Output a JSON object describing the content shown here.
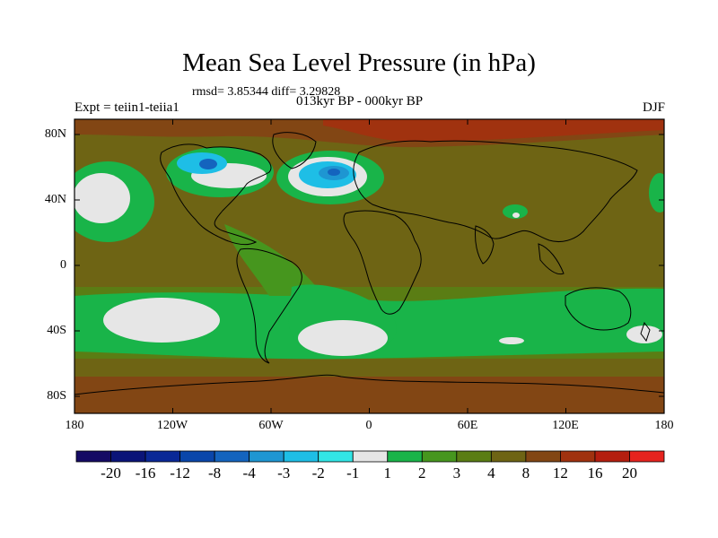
{
  "title": "Mean Sea Level Pressure (in hPa)",
  "stats": "rmsd= 3.85344  diff= 3.29828",
  "period": "013kyr BP - 000kyr BP",
  "expt": "Expt = teiin1-teiia1",
  "season": "DJF",
  "axes": {
    "y_ticks": [
      "80N",
      "40N",
      "0",
      "40S",
      "80S"
    ],
    "x_ticks": [
      "180",
      "120W",
      "60W",
      "0",
      "60E",
      "120E",
      "180"
    ]
  },
  "colorbar": {
    "labels": [
      "-20",
      "-16",
      "-12",
      "-8",
      "-4",
      "-3",
      "-2",
      "-1",
      "1",
      "2",
      "3",
      "4",
      "8",
      "12",
      "16",
      "20"
    ],
    "colors": [
      "#150a64",
      "#0a1478",
      "#0a2896",
      "#0a46aa",
      "#1464be",
      "#1e96d2",
      "#1ebee6",
      "#32e6e6",
      "#e6e6e6",
      "#19b449",
      "#46961e",
      "#5a7d14",
      "#6e6414",
      "#824614",
      "#a0320f",
      "#b41e0f",
      "#e6231e"
    ]
  },
  "map_colors": {
    "base": "#6e6414",
    "mid_green": "#5a7d14",
    "olive": "#46961e",
    "green": "#19b449",
    "white": "#e6e6e6",
    "cyan": "#1ebee6",
    "blue": "#1e96d2",
    "deep_blue": "#1464be",
    "brown": "#824614",
    "red": "#a0320f"
  }
}
